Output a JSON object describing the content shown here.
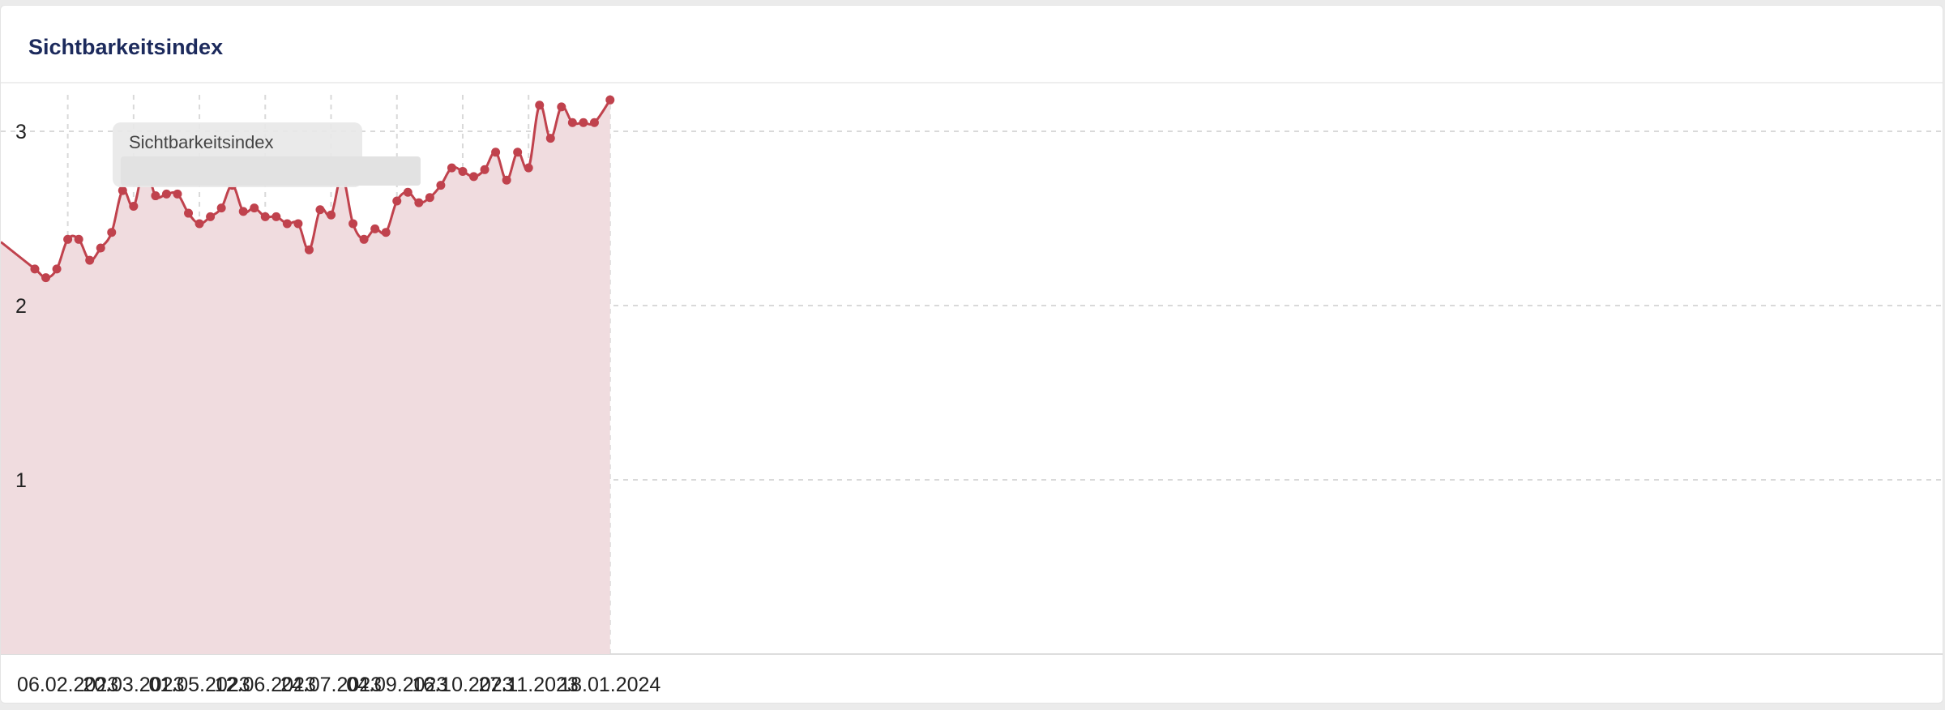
{
  "card": {
    "title": "Sichtbarkeitsindex"
  },
  "tooltip": {
    "label": "Sichtbarkeitsindex"
  },
  "colors": {
    "line": "#c0424d",
    "fill": "#f0dcdf",
    "grid": "#d9d9d9",
    "title": "#1c2a5c"
  },
  "chart_data": {
    "type": "area",
    "title": "Sichtbarkeitsindex",
    "xlabel": "",
    "ylabel": "",
    "ylim": [
      0,
      3.2
    ],
    "y_ticks": [
      1,
      2,
      3
    ],
    "x_tick_labels": [
      "06.02.2023",
      "20.03.2023",
      "01.05.2023",
      "12.06.2023",
      "24.07.2023",
      "04.09.2023",
      "16.10.2023",
      "27.11.2023",
      "18.01.2024"
    ],
    "grid": true,
    "series": [
      {
        "name": "Sichtbarkeitsindex",
        "x": [
          "16.01.2023",
          "23.01.2023",
          "30.01.2023",
          "06.02.2023",
          "13.02.2023",
          "20.02.2023",
          "27.02.2023",
          "06.03.2023",
          "13.03.2023",
          "20.03.2023",
          "27.03.2023",
          "03.04.2023",
          "10.04.2023",
          "17.04.2023",
          "24.04.2023",
          "01.05.2023",
          "08.05.2023",
          "15.05.2023",
          "22.05.2023",
          "29.05.2023",
          "05.06.2023",
          "12.06.2023",
          "19.06.2023",
          "26.06.2023",
          "03.07.2023",
          "10.07.2023",
          "17.07.2023",
          "24.07.2023",
          "31.07.2023",
          "07.08.2023",
          "14.08.2023",
          "21.08.2023",
          "28.08.2023",
          "04.09.2023",
          "11.09.2023",
          "18.09.2023",
          "25.09.2023",
          "02.10.2023",
          "09.10.2023",
          "16.10.2023",
          "23.10.2023",
          "30.10.2023",
          "06.11.2023",
          "13.11.2023",
          "20.11.2023",
          "27.11.2023",
          "04.12.2023",
          "11.12.2023",
          "18.12.2023",
          "25.12.2023",
          "01.01.2024",
          "08.01.2024",
          "18.01.2024"
        ],
        "values": [
          2.21,
          2.16,
          2.21,
          2.38,
          2.38,
          2.26,
          2.33,
          2.42,
          2.66,
          2.57,
          2.8,
          2.63,
          2.64,
          2.64,
          2.53,
          2.47,
          2.51,
          2.56,
          2.69,
          2.54,
          2.56,
          2.51,
          2.51,
          2.47,
          2.47,
          2.32,
          2.55,
          2.52,
          2.74,
          2.47,
          2.38,
          2.44,
          2.42,
          2.6,
          2.65,
          2.59,
          2.62,
          2.69,
          2.79,
          2.77,
          2.74,
          2.78,
          2.88,
          2.72,
          2.88,
          2.79,
          3.15,
          2.96,
          3.14,
          3.05,
          3.05,
          3.05,
          3.18
        ]
      }
    ]
  }
}
